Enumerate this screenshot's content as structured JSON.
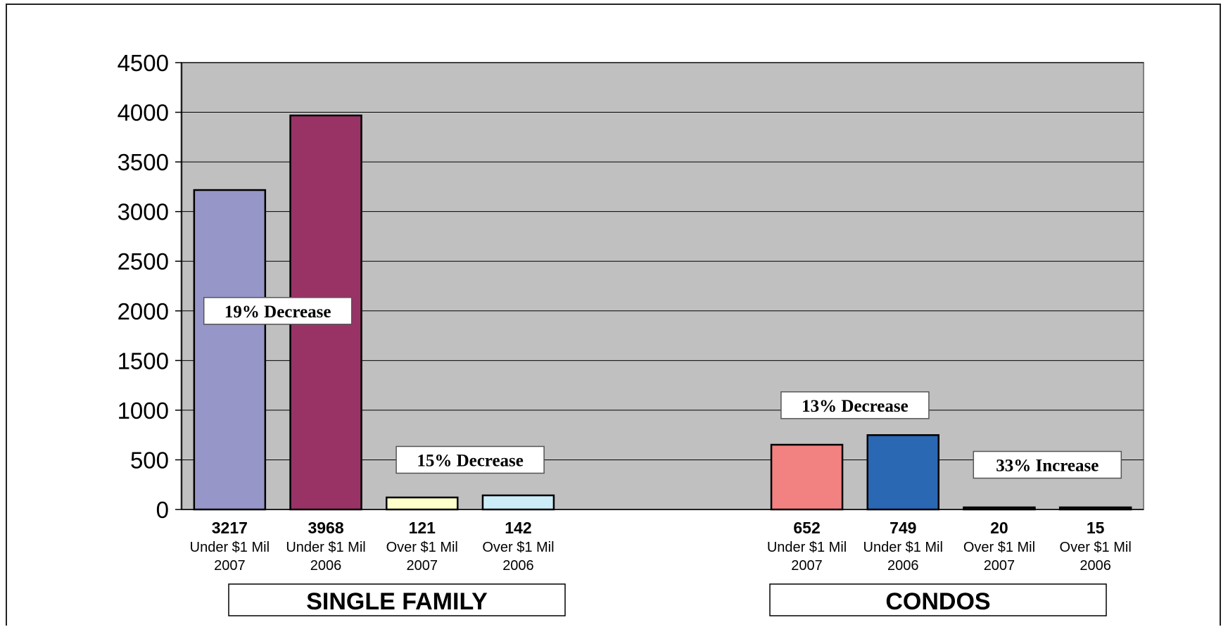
{
  "chart_data": {
    "type": "bar",
    "ylim": [
      0,
      4500
    ],
    "yticks": [
      0,
      500,
      1000,
      1500,
      2000,
      2500,
      3000,
      3500,
      4000,
      4500
    ],
    "grid": true,
    "bars": [
      {
        "group": "SINGLE FAMILY",
        "value": 3217,
        "value_label": "3217",
        "line1": "Under $1 Mil",
        "line2": "2007",
        "color": "#9696c8"
      },
      {
        "group": "SINGLE FAMILY",
        "value": 3968,
        "value_label": "3968",
        "line1": "Under $1 Mil",
        "line2": "2006",
        "color": "#993366"
      },
      {
        "group": "SINGLE FAMILY",
        "value": 121,
        "value_label": "121",
        "line1": "Over $1 Mil",
        "line2": "2007",
        "color": "#ffffcc"
      },
      {
        "group": "SINGLE FAMILY",
        "value": 142,
        "value_label": "142",
        "line1": "Over $1 Mil",
        "line2": "2006",
        "color": "#ccecf8"
      },
      {
        "group": "CONDOS",
        "value": 652,
        "value_label": "652",
        "line1": "Under $1 Mil",
        "line2": "2007",
        "color": "#f28282"
      },
      {
        "group": "CONDOS",
        "value": 749,
        "value_label": "749",
        "line1": "Under $1 Mil",
        "line2": "2006",
        "color": "#2a68b4"
      },
      {
        "group": "CONDOS",
        "value": 20,
        "value_label": "20",
        "line1": "Over $1 Mil",
        "line2": "2007",
        "color": "#111111"
      },
      {
        "group": "CONDOS",
        "value": 15,
        "value_label": "15",
        "line1": "Over $1 Mil",
        "line2": "2006",
        "color": "#111111"
      }
    ],
    "groups": [
      "SINGLE FAMILY",
      "CONDOS"
    ],
    "annotations": [
      {
        "text": "19% Decrease",
        "value": 2000
      },
      {
        "text": "15% Decrease",
        "value": 500
      },
      {
        "text": "13% Decrease",
        "value": 1050
      },
      {
        "text": "33% Increase",
        "value": 450
      }
    ],
    "colors": {
      "plot_bg": "#c0c0c0",
      "grid": "#000000",
      "bar_border": "#000000"
    }
  }
}
